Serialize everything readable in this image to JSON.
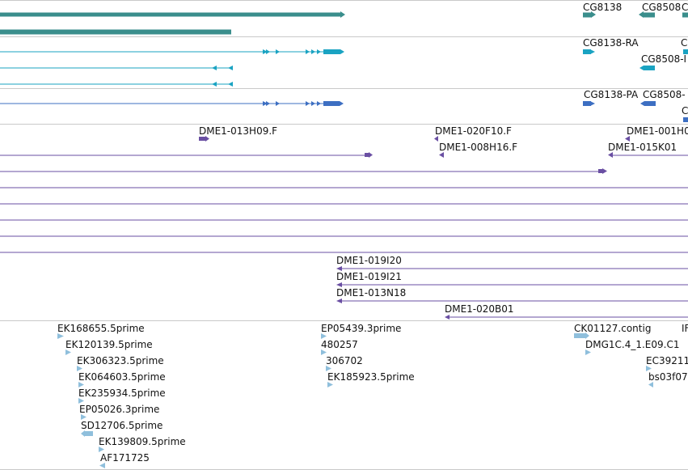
{
  "colors": {
    "gene_teal": "#3a8e8c",
    "transcript_cyan": "#1aa3c2",
    "protein_blue": "#3d6fc2",
    "clone_purple": "#6a4fa3",
    "est_lightblue": "#8fbfdc",
    "separator": "#c9c9c9"
  },
  "tracks": {
    "genes": {
      "labels": [
        "CG8138",
        "CG8508",
        "C"
      ]
    },
    "transcripts": {
      "labels": [
        "CG8138-RA",
        "CG8508-I",
        "C"
      ]
    },
    "proteins": {
      "labels": [
        "CG8138-PA",
        "CG8508-",
        "C"
      ]
    },
    "clones": {
      "labels": [
        "DME1-013H09.F",
        "DME1-020F10.F",
        "DME1-001H0",
        "DME1-008H16.F",
        "DME1-015K01",
        "DME1-019I20",
        "DME1-019I21",
        "DME1-013N18",
        "DME1-020B01"
      ]
    },
    "ests": {
      "labels": [
        "EK168655.5prime",
        "EK120139.5prime",
        "EK306323.5prime",
        "EK064603.5prime",
        "EK235934.5prime",
        "EP05026.3prime",
        "SD12706.5prime",
        "EK139809.5prime",
        "AF171725",
        "EP05439.3prime",
        "480257",
        "306702",
        "EK185923.5prime",
        "CK01127.contig",
        "DMG1C.4_1.E09.C1",
        "EC39211",
        "bs03f07",
        "IF"
      ]
    }
  }
}
